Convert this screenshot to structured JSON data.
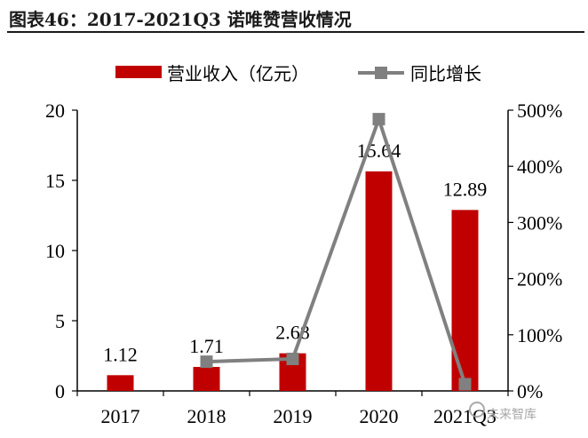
{
  "figure": {
    "title": "图表46：2017-2021Q3 诺唯赞营收情况"
  },
  "colors": {
    "bar": "#c00000",
    "line": "#808080",
    "axis": "#000000",
    "text": "#000000"
  },
  "chart_data": {
    "type": "bar",
    "categories": [
      "2017",
      "2018",
      "2019",
      "2020",
      "2021Q3"
    ],
    "series": [
      {
        "name": "营业收入（亿元）",
        "type": "bar",
        "axis": "left",
        "values": [
          1.12,
          1.71,
          2.68,
          15.64,
          12.89
        ],
        "data_labels": [
          "1.12",
          "1.71",
          "2.68",
          "15.64",
          "12.89"
        ]
      },
      {
        "name": "同比增长",
        "type": "line",
        "axis": "right",
        "points": [
          {
            "category": "2018",
            "value": 52
          },
          {
            "category": "2019",
            "value": 57
          },
          {
            "category": "2020",
            "value": 484
          },
          {
            "category": "2021Q3",
            "value": 12
          }
        ]
      }
    ],
    "y_left": {
      "min": 0,
      "max": 20,
      "ticks": [
        0,
        5,
        10,
        15,
        20
      ],
      "tick_labels": [
        "0",
        "5",
        "10",
        "15",
        "20"
      ]
    },
    "y_right": {
      "min": 0,
      "max": 500,
      "ticks": [
        0,
        100,
        200,
        300,
        400,
        500
      ],
      "tick_labels": [
        "0%",
        "100%",
        "200%",
        "300%",
        "400%",
        "500%"
      ]
    },
    "legend": {
      "position": "top",
      "entries": [
        "营业收入（亿元）",
        "同比增长"
      ]
    },
    "grid": false
  },
  "watermark": {
    "text": "未来智库"
  }
}
